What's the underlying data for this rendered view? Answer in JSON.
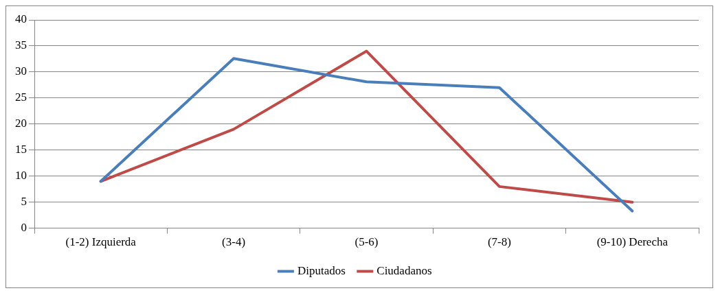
{
  "chart_data": {
    "type": "line",
    "categories": [
      "(1-2) Izquierda",
      "(3-4)",
      "(5-6)",
      "(7-8)",
      "(9-10) Derecha"
    ],
    "series": [
      {
        "name": "Diputados",
        "color": "#4a7ebb",
        "values": [
          9,
          32.6,
          28.1,
          27,
          3.3
        ]
      },
      {
        "name": "Ciudadanos",
        "color": "#be4b48",
        "values": [
          9,
          19,
          34,
          8,
          5
        ]
      }
    ],
    "ylim": [
      0,
      40
    ],
    "yticks": [
      0,
      5,
      10,
      15,
      20,
      25,
      30,
      35,
      40
    ],
    "grid": "y",
    "legend": "bottom",
    "marker": "none",
    "line_style": "solid"
  }
}
